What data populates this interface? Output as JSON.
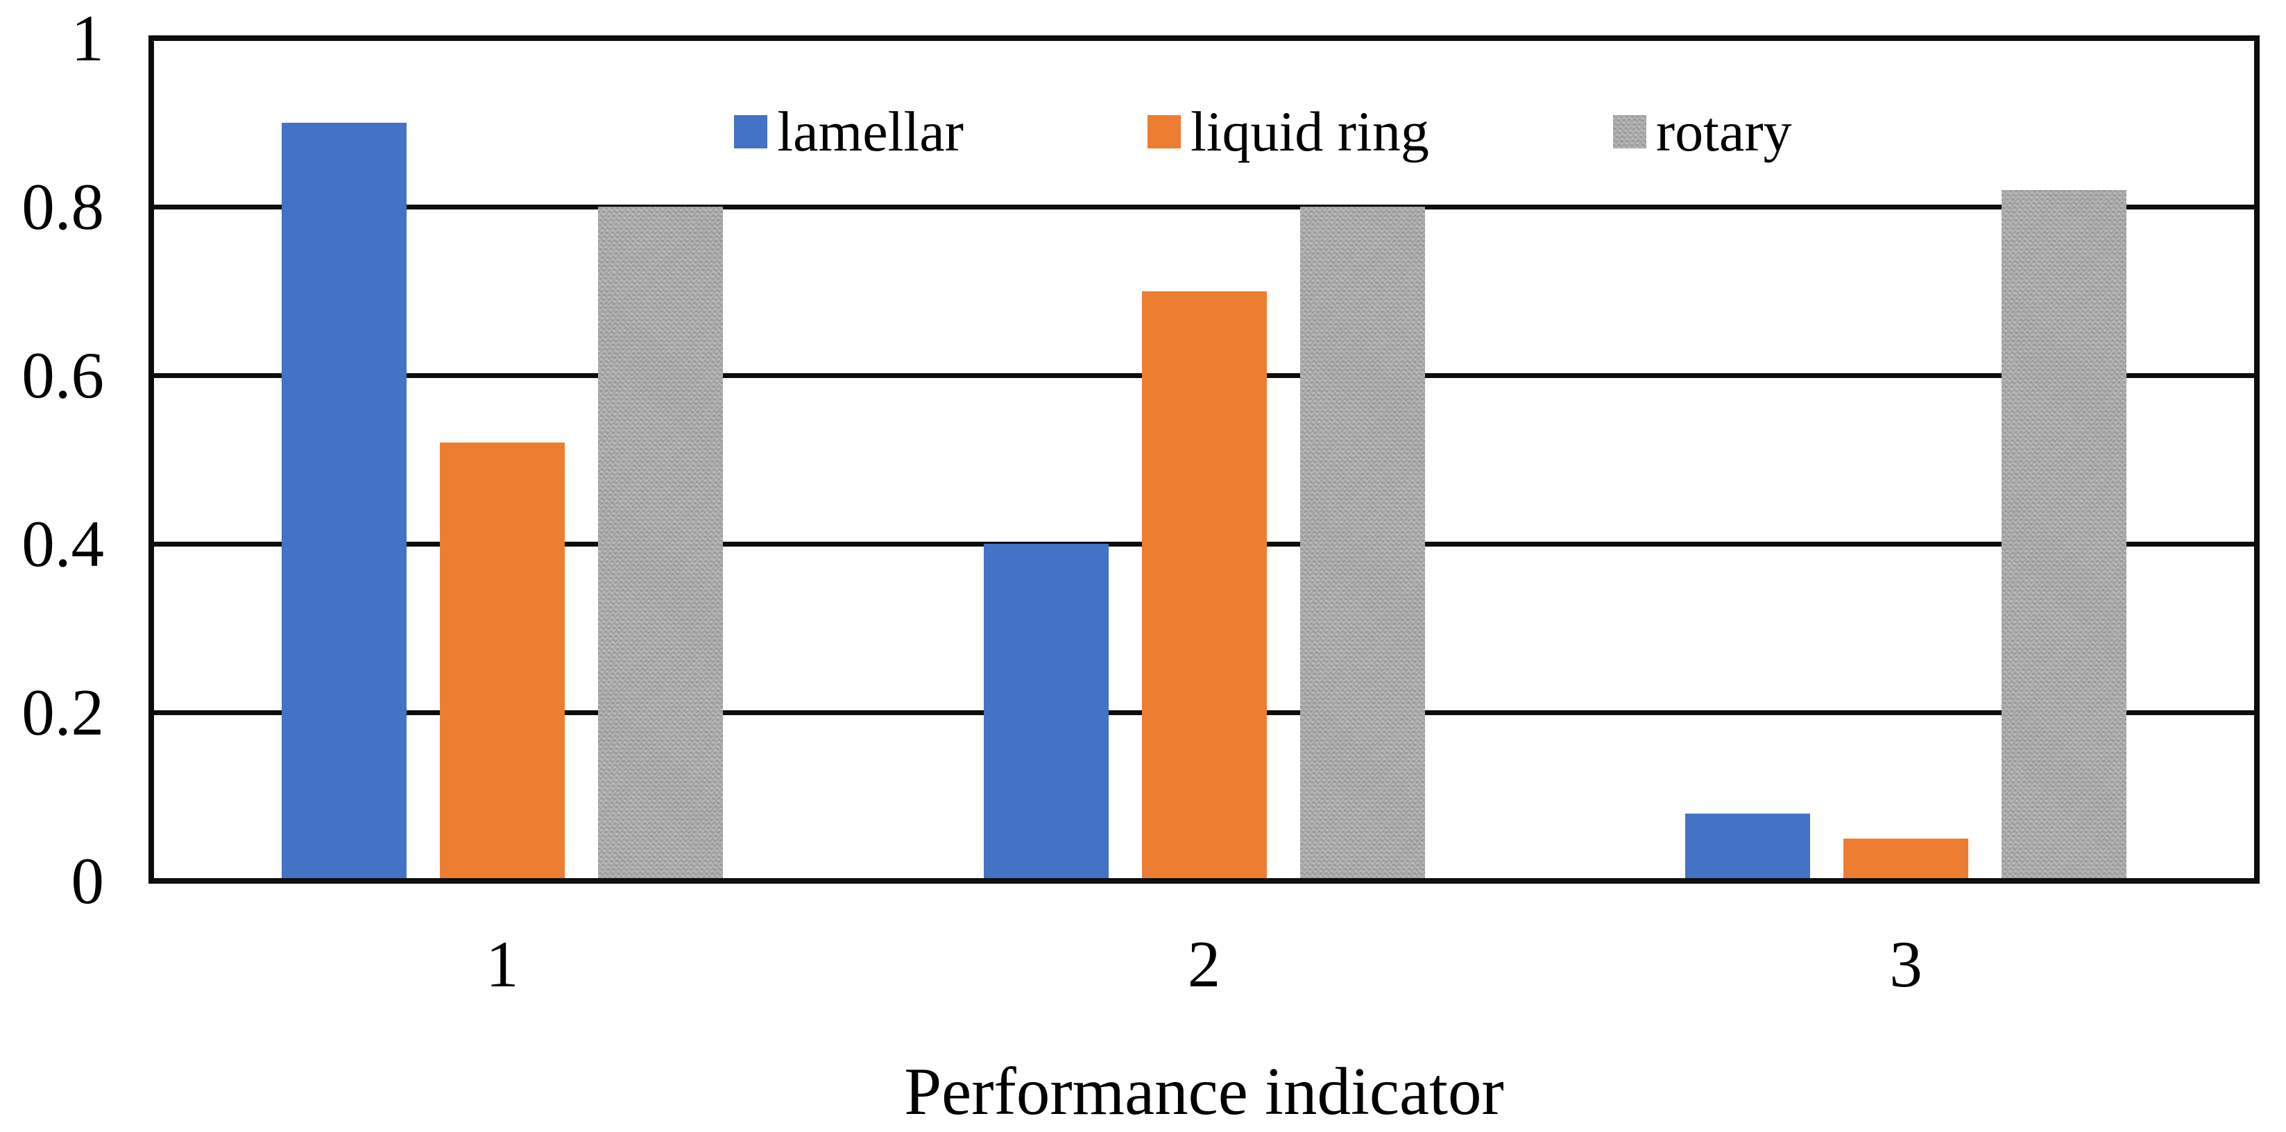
{
  "figure": {
    "xaxis_title": "Performance indicator",
    "background_color": "#ffffff",
    "line_color": "#0d0d0d"
  },
  "chart_data": {
    "type": "bar",
    "title": "",
    "xlabel": "Performance indicator",
    "ylabel": "",
    "categories": [
      "1",
      "2",
      "3"
    ],
    "series": [
      {
        "name": "lamellar",
        "color": "#4472C4",
        "textured": false,
        "values": [
          0.9,
          0.4,
          0.08
        ]
      },
      {
        "name": "liquid ring",
        "color": "#ED7D31",
        "textured": false,
        "values": [
          0.52,
          0.7,
          0.05
        ]
      },
      {
        "name": "rotary",
        "color": "#ABABAB",
        "textured": true,
        "values": [
          0.8,
          0.8,
          0.82
        ]
      }
    ],
    "ylim": [
      0,
      1
    ],
    "yticks": [
      0,
      0.2,
      0.4,
      0.6,
      0.8,
      1
    ],
    "ytick_labels": [
      "0",
      "0.2",
      "0.4",
      "0.6",
      "0.8",
      "1"
    ],
    "grid": "horizontal",
    "gridlines_behind_bars": true,
    "legend_position": "top-center-inside"
  }
}
